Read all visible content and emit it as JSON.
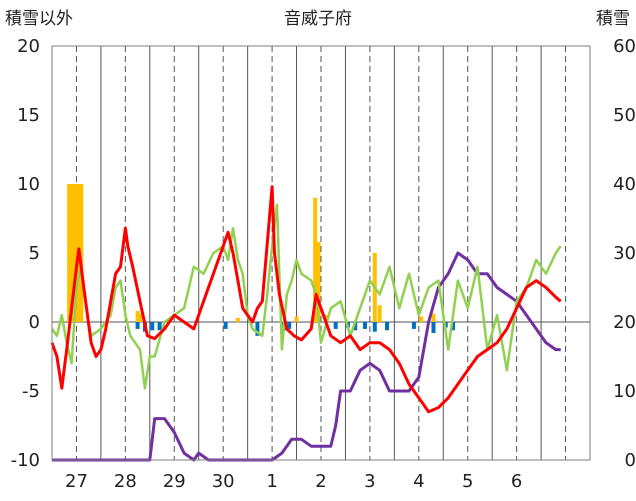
{
  "chart_data": {
    "type": "line",
    "title": "音威子府",
    "ylabel_left": "積雪以外",
    "ylabel_right": "積雪",
    "ylim_left": [
      -10,
      20
    ],
    "ylim_right": [
      0,
      60
    ],
    "yticks_left": [
      20,
      15,
      10,
      5,
      0,
      -5,
      -10
    ],
    "yticks_right": [
      60,
      50,
      40,
      30,
      20,
      10,
      0
    ],
    "x_range": [
      26.5,
      37.5
    ],
    "categories": [
      "27",
      "28",
      "29",
      "30",
      "1",
      "2",
      "3",
      "4",
      "5",
      "6"
    ],
    "category_x": [
      27,
      28,
      29,
      30,
      31,
      32,
      33,
      34,
      35,
      36
    ],
    "grid": "vertical solid at day boundaries, dashed at noon",
    "colors": {
      "temperature": "#ff0000",
      "green": "#92d050",
      "snow_depth": "#7030a0",
      "precip": "#ffc000",
      "negative_bar": "#0070c0"
    },
    "series": [
      {
        "key": "red",
        "axis": "left",
        "x": [
          26.5,
          26.6,
          26.7,
          26.8,
          26.9,
          27.0,
          27.05,
          27.15,
          27.3,
          27.4,
          27.5,
          27.6,
          27.7,
          27.8,
          27.9,
          28.0,
          28.05,
          28.15,
          28.3,
          28.45,
          28.6,
          28.8,
          29.0,
          29.2,
          29.4,
          29.6,
          29.8,
          30.0,
          30.1,
          30.2,
          30.3,
          30.4,
          30.5,
          30.6,
          30.7,
          30.8,
          31.0,
          31.05,
          31.15,
          31.3,
          31.45,
          31.6,
          31.8,
          31.9,
          32.0,
          32.1,
          32.2,
          32.4,
          32.6,
          32.8,
          33.0,
          33.2,
          33.4,
          33.6,
          33.8,
          34.0,
          34.2,
          34.4,
          34.6,
          34.8,
          35.0,
          35.2,
          35.4,
          35.6,
          35.8,
          36.0,
          36.2,
          36.4,
          36.6,
          36.8,
          36.9
        ],
        "y": [
          -1.5,
          -2.5,
          -4.8,
          -2.0,
          1.0,
          4.0,
          5.3,
          2.5,
          -1.5,
          -2.5,
          -2.0,
          -0.5,
          1.5,
          3.5,
          4.0,
          6.8,
          5.5,
          4.0,
          1.5,
          -1.0,
          -1.2,
          -0.5,
          0.5,
          0.0,
          -0.5,
          1.5,
          3.5,
          5.5,
          6.5,
          5.0,
          3.0,
          1.0,
          0.5,
          0.0,
          1.0,
          1.5,
          9.8,
          5.0,
          2.0,
          -0.5,
          -1.0,
          -1.3,
          -0.5,
          2.0,
          1.0,
          0.0,
          -1.0,
          -1.5,
          -1.0,
          -2.0,
          -1.5,
          -1.5,
          -2.0,
          -3.0,
          -4.5,
          -5.5,
          -6.5,
          -6.2,
          -5.5,
          -4.5,
          -3.5,
          -2.5,
          -2.0,
          -1.5,
          -0.5,
          1.0,
          2.5,
          3.0,
          2.5,
          1.8,
          1.5
        ]
      },
      {
        "key": "green",
        "axis": "left",
        "x": [
          26.5,
          26.6,
          26.7,
          26.8,
          26.9,
          27.0,
          27.1,
          27.2,
          27.3,
          27.5,
          27.7,
          27.8,
          27.9,
          28.0,
          28.1,
          28.3,
          28.4,
          28.5,
          28.6,
          28.8,
          29.0,
          29.2,
          29.4,
          29.6,
          29.8,
          30.0,
          30.1,
          30.2,
          30.3,
          30.4,
          30.5,
          30.6,
          30.8,
          30.9,
          31.0,
          31.1,
          31.2,
          31.3,
          31.4,
          31.5,
          31.6,
          31.8,
          31.9,
          32.0,
          32.2,
          32.4,
          32.6,
          32.8,
          33.0,
          33.2,
          33.4,
          33.6,
          33.8,
          34.0,
          34.2,
          34.4,
          34.6,
          34.8,
          35.0,
          35.2,
          35.4,
          35.6,
          35.8,
          36.0,
          36.2,
          36.4,
          36.6,
          36.8,
          36.9
        ],
        "y": [
          -0.5,
          -1.0,
          0.5,
          -1.5,
          -3.0,
          2.5,
          4.0,
          1.0,
          -1.0,
          -0.5,
          0.5,
          2.5,
          3.0,
          0.5,
          -1.0,
          -2.0,
          -4.8,
          -2.5,
          -2.5,
          0.0,
          0.5,
          1.0,
          4.0,
          3.5,
          5.0,
          5.5,
          4.5,
          6.8,
          4.5,
          3.5,
          0.5,
          -0.5,
          -1.0,
          2.0,
          5.5,
          8.5,
          -2.0,
          2.0,
          3.0,
          4.5,
          3.5,
          3.0,
          2.0,
          -1.5,
          1.0,
          1.5,
          -1.0,
          1.0,
          3.0,
          2.0,
          4.0,
          1.0,
          3.5,
          0.5,
          2.5,
          3.0,
          -2.0,
          3.0,
          1.0,
          4.0,
          -2.0,
          0.5,
          -3.5,
          1.5,
          2.5,
          4.5,
          3.5,
          5.0,
          5.5
        ]
      },
      {
        "key": "purple",
        "axis": "right",
        "x": [
          26.5,
          27.0,
          27.5,
          28.0,
          28.5,
          28.6,
          28.7,
          28.8,
          29.0,
          29.2,
          29.4,
          29.5,
          29.7,
          30.0,
          30.5,
          31.0,
          31.2,
          31.4,
          31.6,
          31.8,
          32.0,
          32.2,
          32.3,
          32.4,
          32.6,
          32.8,
          33.0,
          33.2,
          33.4,
          33.6,
          33.8,
          34.0,
          34.2,
          34.4,
          34.6,
          34.8,
          35.0,
          35.2,
          35.4,
          35.6,
          35.8,
          36.0,
          36.2,
          36.4,
          36.6,
          36.8,
          36.9
        ],
        "y": [
          0,
          0,
          0,
          0,
          0,
          6,
          6,
          6,
          4,
          1,
          0,
          1,
          0,
          0,
          0,
          0,
          1,
          3,
          3,
          2,
          2,
          2,
          5,
          10,
          10,
          13,
          14,
          13,
          10,
          10,
          10,
          12,
          20,
          25,
          27,
          30,
          29,
          27,
          27,
          25,
          24,
          23,
          21,
          19,
          17,
          16,
          16
        ]
      }
    ],
    "bars": [
      {
        "key": "precip",
        "axis": "left",
        "x": [
          26.85,
          26.9,
          26.95,
          27.0,
          27.05,
          27.1,
          28.25,
          28.3,
          30.3,
          31.5,
          31.88,
          31.95,
          32.1,
          33.1,
          33.2,
          34.05,
          34.3
        ],
        "values": [
          10,
          10,
          10,
          10,
          10,
          10,
          0.8,
          0.6,
          0.3,
          0.4,
          9.0,
          5.8,
          0.5,
          5.0,
          1.2,
          0.4,
          0.6
        ]
      },
      {
        "key": "negative_bar",
        "axis": "left",
        "x": [
          28.25,
          28.4,
          28.55,
          28.7,
          30.05,
          30.7,
          31.25,
          31.35,
          32.3,
          32.55,
          32.7,
          32.9,
          33.1,
          33.35,
          33.9,
          34.3,
          34.55,
          34.7
        ],
        "values": [
          -0.5,
          -0.7,
          -0.6,
          -0.6,
          -0.5,
          -1.0,
          -0.6,
          -0.5,
          -0.5,
          -0.4,
          -0.6,
          -0.5,
          -0.7,
          -0.6,
          -0.5,
          -0.8,
          -0.4,
          -0.6
        ]
      }
    ]
  }
}
